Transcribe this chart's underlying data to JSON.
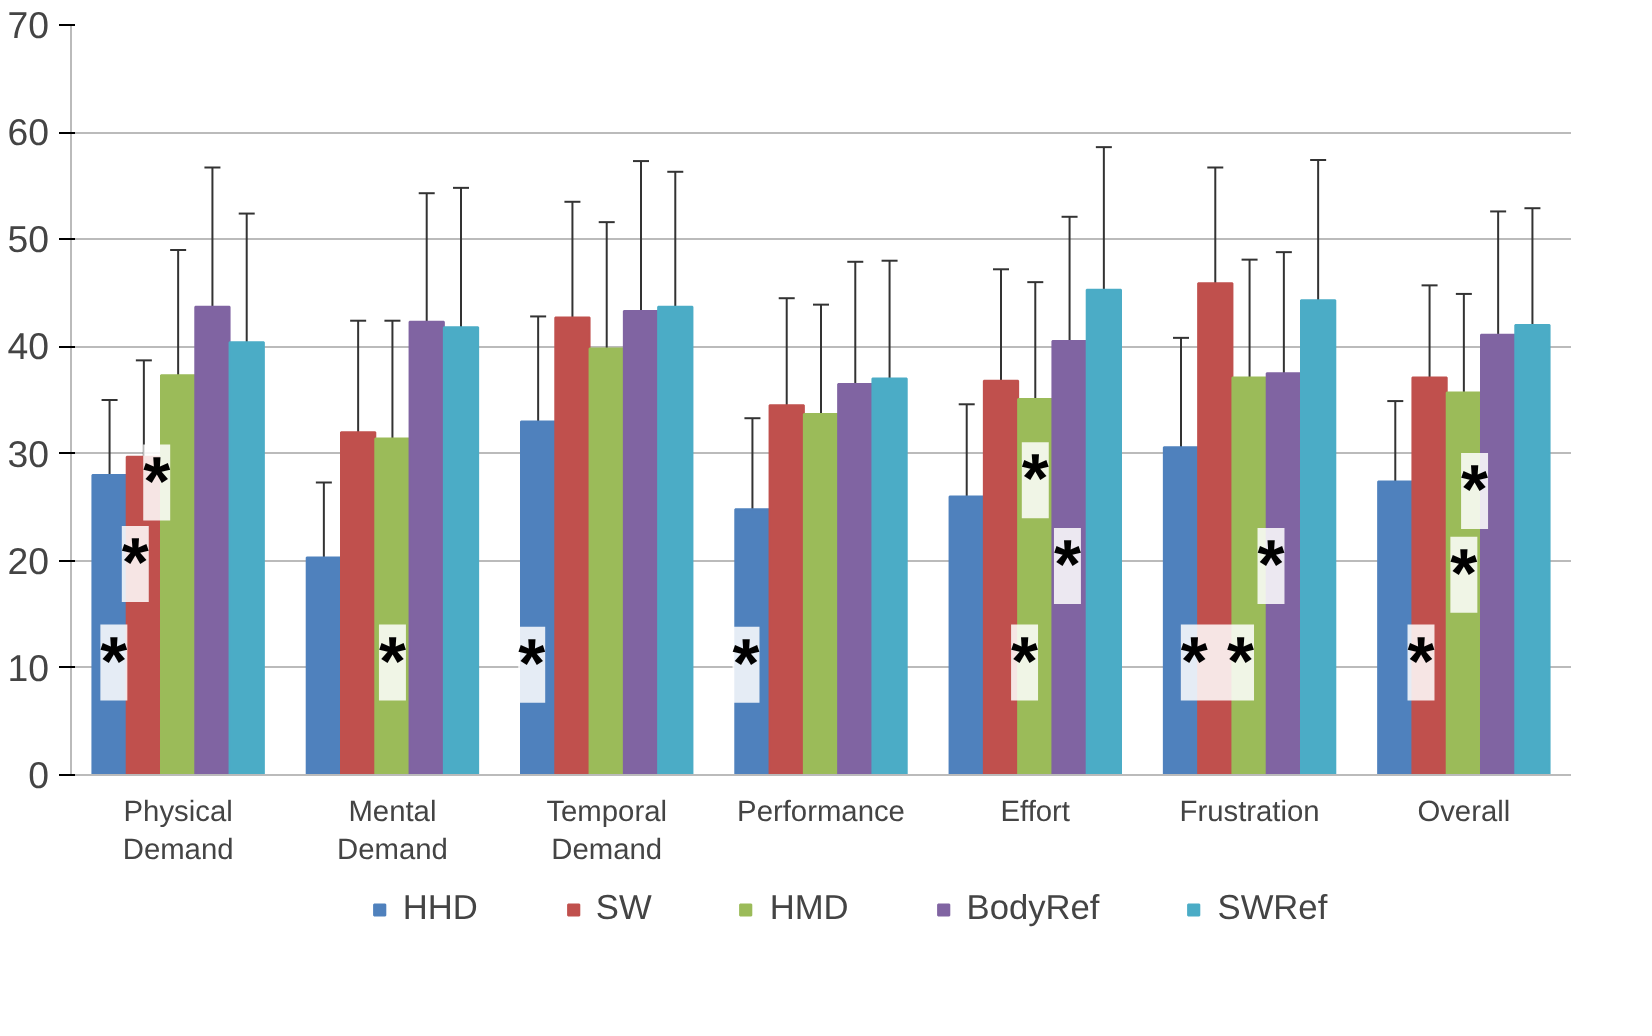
{
  "chart_data": {
    "type": "bar",
    "categories": [
      "Physical Demand",
      "Mental Demand",
      "Temporal Demand",
      "Performance",
      "Effort",
      "Frustration",
      "Overall"
    ],
    "series": [
      {
        "name": "HHD",
        "color": "#4f81bd",
        "values": [
          28,
          20.3,
          33,
          24.8,
          26,
          30.6,
          27.4
        ],
        "errors": [
          7,
          7,
          9.8,
          8.5,
          8.6,
          10.2,
          7.5
        ]
      },
      {
        "name": "SW",
        "color": "#c0504d",
        "values": [
          29.7,
          32,
          42.7,
          34.5,
          36.8,
          45.9,
          37.1
        ],
        "errors": [
          9,
          10.4,
          10.8,
          10,
          10.4,
          10.8,
          8.6
        ]
      },
      {
        "name": "HMD",
        "color": "#9bbb59",
        "values": [
          37.3,
          31.4,
          39.8,
          33.7,
          35.1,
          37.1,
          35.7
        ],
        "errors": [
          11.7,
          11,
          11.8,
          10.2,
          10.9,
          11,
          9.2
        ]
      },
      {
        "name": "BodyRef",
        "color": "#8064a2",
        "values": [
          43.7,
          42.3,
          43.3,
          36.5,
          40.5,
          37.5,
          41.1
        ],
        "errors": [
          13,
          12,
          14,
          11.4,
          11.6,
          11.3,
          11.5
        ]
      },
      {
        "name": "SWRef",
        "color": "#4bacc6",
        "values": [
          40.4,
          41.8,
          43.7,
          37,
          45.3,
          44.3,
          42
        ],
        "errors": [
          12,
          13,
          12.6,
          11,
          13.3,
          13.1,
          10.9
        ]
      }
    ],
    "ylim": [
      0,
      70
    ],
    "yticks": [
      0,
      10,
      20,
      30,
      40,
      50,
      60,
      70
    ],
    "grid": "y",
    "legend": "bottom",
    "annotations": [
      "*",
      "*",
      "*",
      "*",
      "*",
      "*",
      "*",
      "*",
      "*",
      "*",
      "* *",
      "*",
      "*",
      "*"
    ]
  }
}
